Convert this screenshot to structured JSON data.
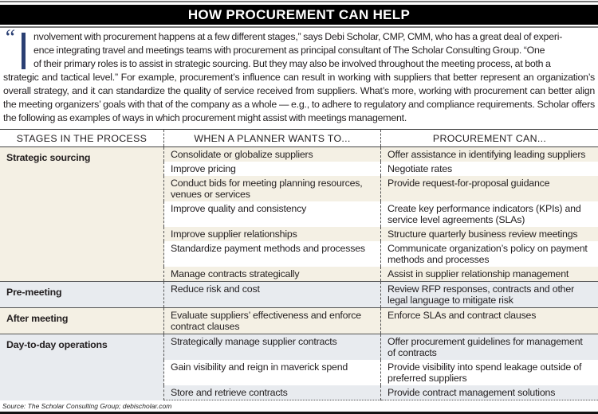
{
  "title": "HOW PROCUREMENT CAN HELP",
  "intro": {
    "open_quote": "“",
    "first_line": "nvolvement with procurement happens at a few different stages,” says Debi Scholar, CMP, CMM, who has a great deal of experi-",
    "line2": "ence integrating travel and meetings teams with procurement as principal consultant of The Scholar Consulting Group. “One",
    "line3": "of their primary roles is to assist in strategic sourcing. But they may also be involved throughout the meeting process, at both a",
    "rest": "strategic and tactical level.” For example, procurement’s influence can result in working with suppliers that better represent an organi­zation’s overall strategy, and it can standardize the quality of service received from suppliers. What’s more, working with procurement can better align the meeting organizers’ goals with that of the company as a whole — e.g., to adhere to regulatory and compliance requirements. Scholar offers the following as examples of ways in which procurement might assist with meetings management."
  },
  "table": {
    "headers": [
      "STAGES IN THE PROCESS",
      "WHEN A PLANNER WANTS TO...",
      "PROCUREMENT CAN..."
    ],
    "groups": [
      {
        "stage": "Strategic sourcing",
        "rows": [
          [
            "Consolidate or globalize suppliers",
            "Offer assistance in identifying leading suppliers"
          ],
          [
            "Improve pricing",
            "Negotiate rates"
          ],
          [
            "Conduct bids for meeting planning resources, venues or services",
            "Provide request-for-proposal guidance"
          ],
          [
            "Improve quality and consistency",
            "Create key performance indicators (KPIs) and service level agreements (SLAs)"
          ],
          [
            "Improve supplier relationships",
            "Structure quarterly business review meetings"
          ],
          [
            "Standardize payment methods and processes",
            "Communicate organization’s policy on pay­ment methods and processes"
          ],
          [
            "Manage contracts strategically",
            "Assist in supplier relationship management"
          ]
        ]
      },
      {
        "stage": "Pre-meeting",
        "rows": [
          [
            "Reduce risk and cost",
            "Review RFP responses, contracts and other legal language to mitigate risk"
          ]
        ]
      },
      {
        "stage": "After meeting",
        "rows": [
          [
            "Evaluate suppliers’ effectiveness and enforce contract clauses",
            "Enforce SLAs and contract clauses"
          ]
        ]
      },
      {
        "stage": "Day-to-day operations",
        "rows": [
          [
            "Strategically manage supplier contracts",
            "Offer procurement guidelines for management of contracts"
          ],
          [
            "Gain visibility and reign in maverick spend",
            "Provide visibility into spend leakage outside of preferred suppliers"
          ],
          [
            "Store and retrieve contracts",
            "Provide contract management solutions"
          ]
        ]
      }
    ]
  },
  "source": "Source: The Scholar Consulting Group; debischolar.com",
  "colors": {
    "beige": "#f4f0e4",
    "blue_gray": "#e8ebef",
    "drop_cap": "#2a3f73",
    "title_bar": "#000000"
  }
}
